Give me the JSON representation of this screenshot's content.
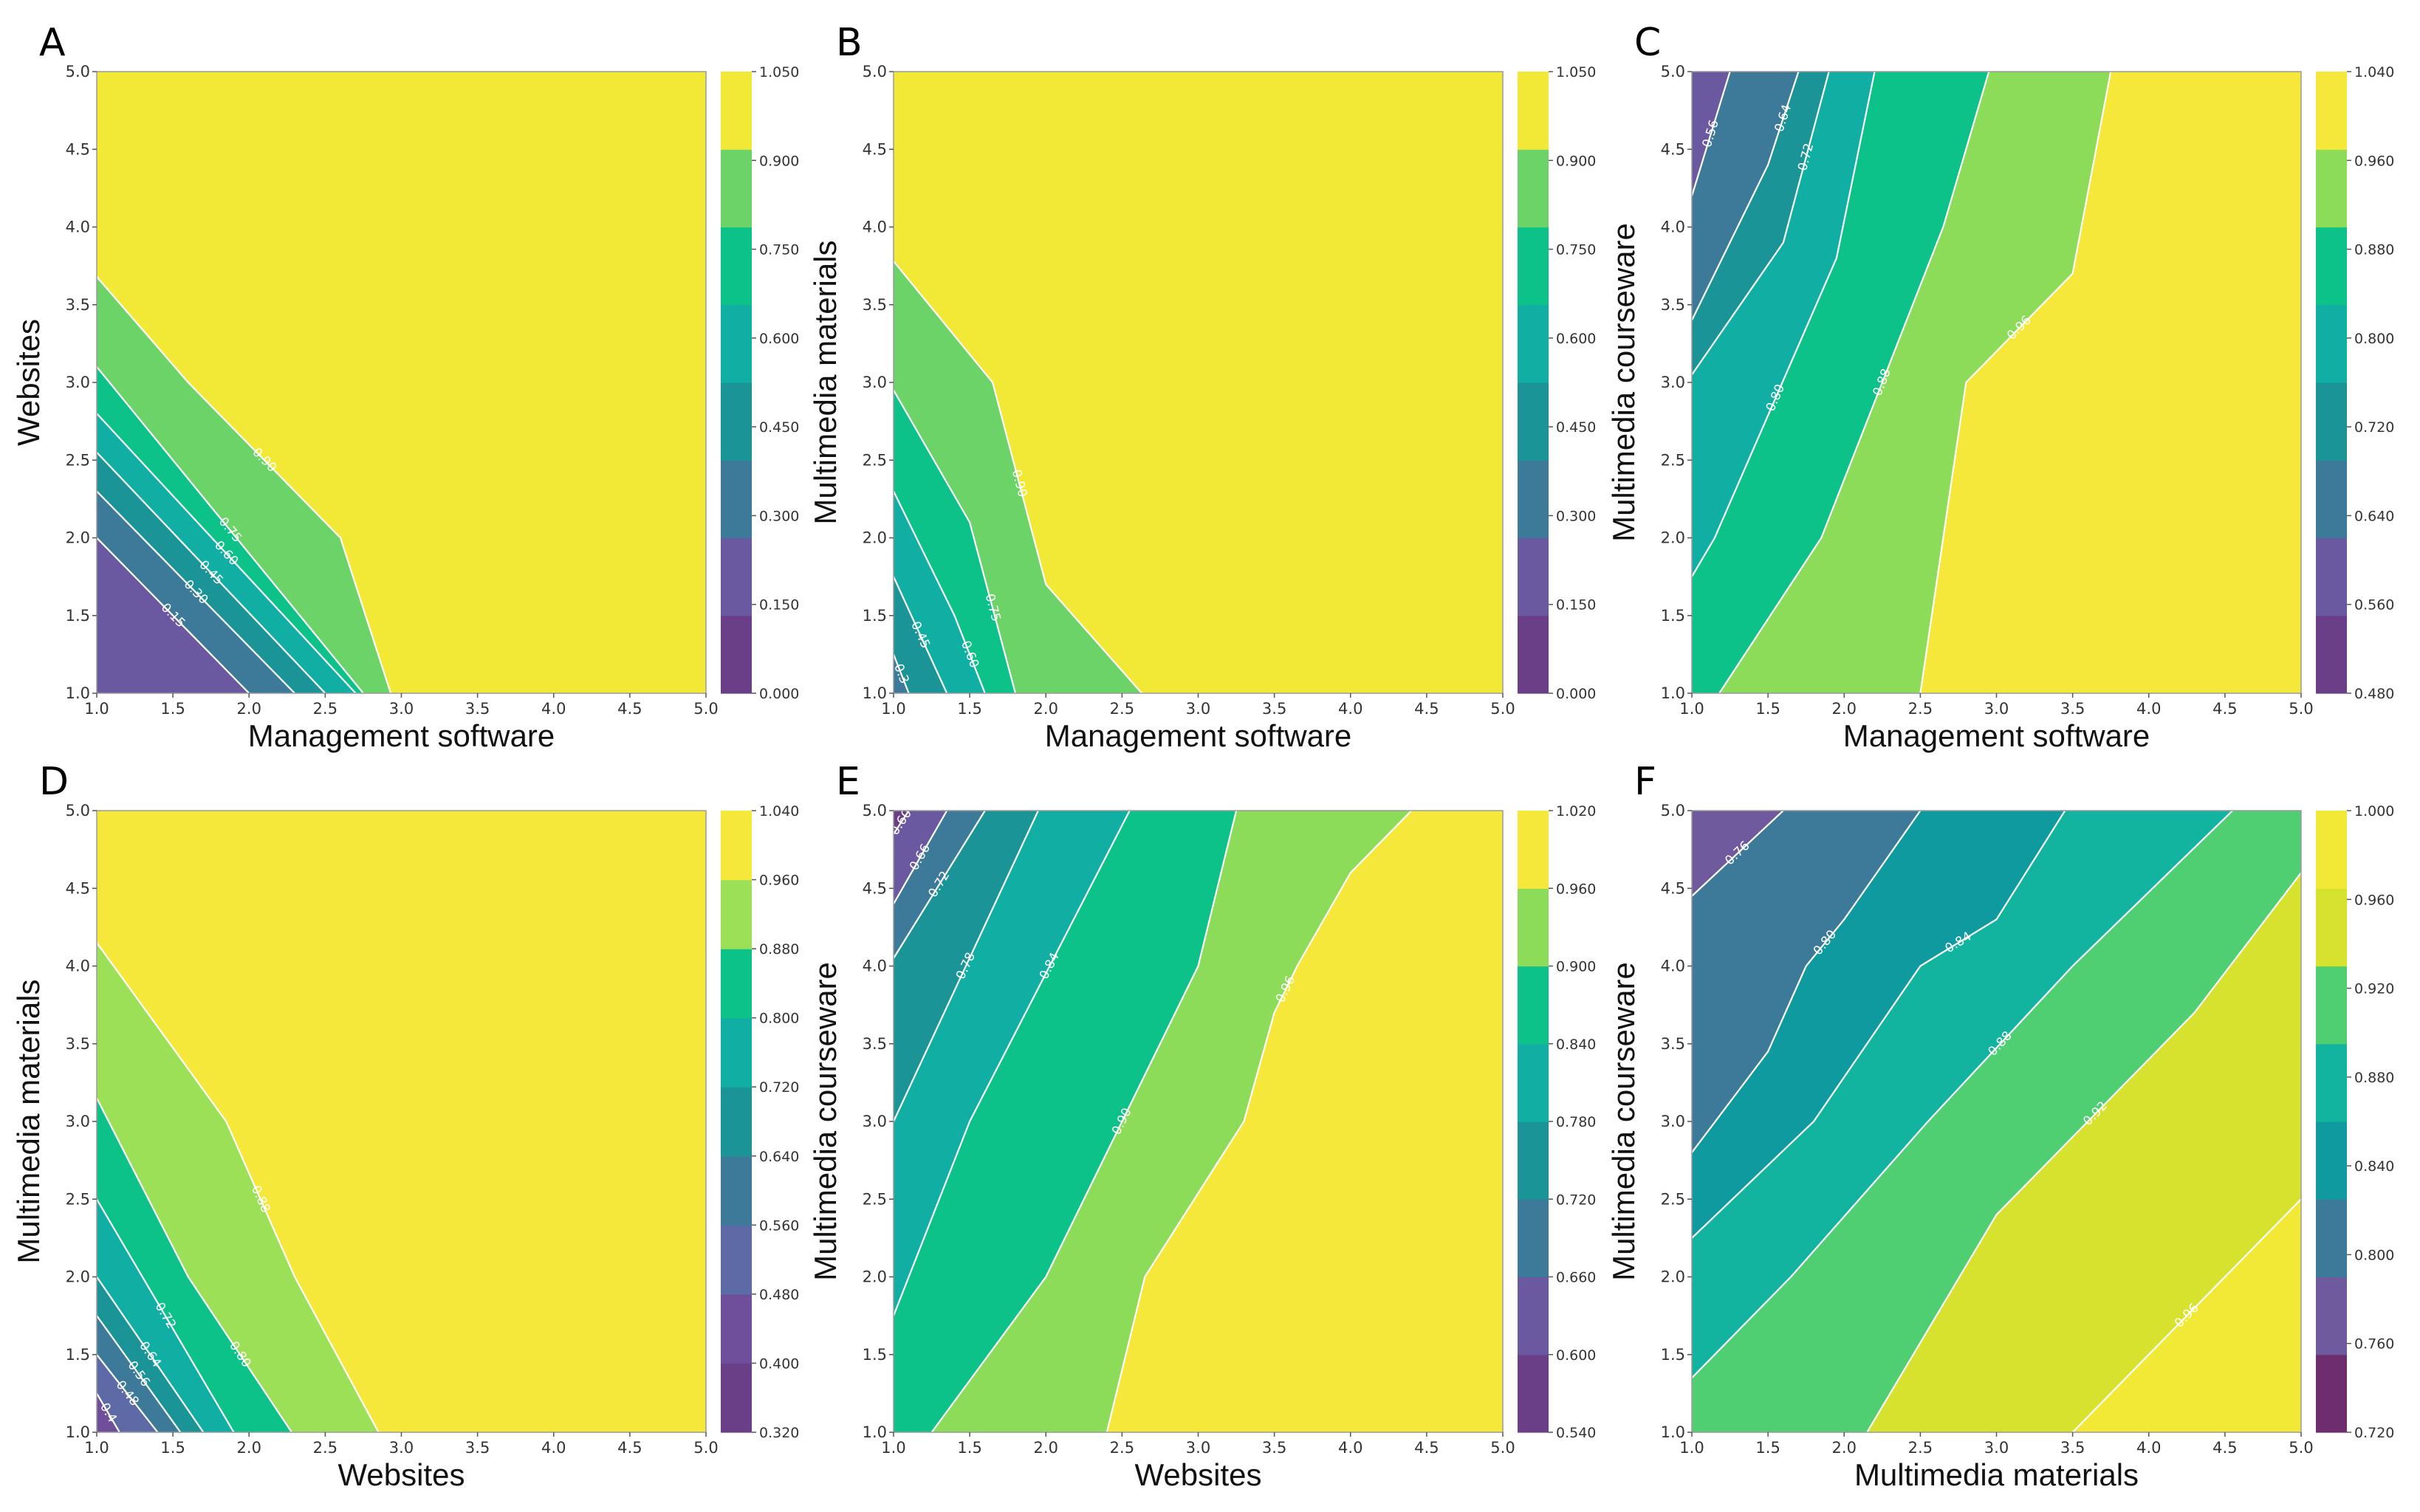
{
  "chart_data": [
    {
      "panel": "A",
      "type": "contourf",
      "xlabel": "Management software",
      "ylabel": "Websites",
      "xlim": [
        1.0,
        5.0
      ],
      "ylim": [
        1.0,
        5.0
      ],
      "xticks": [
        "1.0",
        "1.5",
        "2.0",
        "2.5",
        "3.0",
        "3.5",
        "4.0",
        "4.5",
        "5.0"
      ],
      "yticks": [
        "1.0",
        "1.5",
        "2.0",
        "2.5",
        "3.0",
        "3.5",
        "4.0",
        "4.5",
        "5.0"
      ],
      "levels": [
        0.0,
        0.15,
        0.3,
        0.45,
        0.6,
        0.75,
        0.9,
        1.05
      ],
      "colorbar_ticks": [
        "0.000",
        "0.150",
        "0.300",
        "0.450",
        "0.600",
        "0.750",
        "0.900",
        "1.050"
      ],
      "colors": [
        "#6b3e88",
        "#6a58a0",
        "#3d7a9a",
        "#1a9497",
        "#11aea3",
        "#0cc288",
        "#6bd367",
        "#f2e937"
      ],
      "contours": [
        {
          "level": 0.15,
          "label": "0.15",
          "points": [
            [
              1.0,
              2.0
            ],
            [
              2.0,
              1.0
            ]
          ]
        },
        {
          "level": 0.3,
          "label": "0.30",
          "points": [
            [
              1.0,
              2.3
            ],
            [
              2.3,
              1.0
            ]
          ]
        },
        {
          "level": 0.45,
          "label": "0.45",
          "points": [
            [
              1.0,
              2.55
            ],
            [
              2.5,
              1.0
            ]
          ]
        },
        {
          "level": 0.6,
          "label": "0.60",
          "points": [
            [
              1.0,
              2.8
            ],
            [
              2.7,
              1.0
            ]
          ]
        },
        {
          "level": 0.75,
          "label": "0.75",
          "points": [
            [
              1.0,
              3.1
            ],
            [
              2.75,
              1.0
            ]
          ]
        },
        {
          "level": 0.9,
          "label": "0.90",
          "points": [
            [
              1.0,
              3.68
            ],
            [
              1.6,
              3.0
            ],
            [
              2.6,
              2.0
            ],
            [
              2.93,
              1.0
            ]
          ]
        }
      ]
    },
    {
      "panel": "B",
      "type": "contourf",
      "xlabel": "Management software",
      "ylabel": "Multimedia materials",
      "xlim": [
        1.0,
        5.0
      ],
      "ylim": [
        1.0,
        5.0
      ],
      "xticks": [
        "1.0",
        "1.5",
        "2.0",
        "2.5",
        "3.0",
        "3.5",
        "4.0",
        "4.5",
        "5.0"
      ],
      "yticks": [
        "1.0",
        "1.5",
        "2.0",
        "2.5",
        "3.0",
        "3.5",
        "4.0",
        "4.5",
        "5.0"
      ],
      "levels": [
        0.0,
        0.15,
        0.3,
        0.45,
        0.6,
        0.75,
        0.9,
        1.05
      ],
      "colorbar_ticks": [
        "0.000",
        "0.150",
        "0.300",
        "0.450",
        "0.600",
        "0.750",
        "0.900",
        "1.050"
      ],
      "colors": [
        "#6b3e88",
        "#6a58a0",
        "#3d7a9a",
        "#1a9497",
        "#11aea3",
        "#0cc288",
        "#6bd367",
        "#f2e937"
      ],
      "contours": [
        {
          "level": 0.3,
          "label": "0.3",
          "points": [
            [
              1.0,
              1.25
            ],
            [
              1.1,
              1.0
            ]
          ]
        },
        {
          "level": 0.45,
          "label": "0.45",
          "points": [
            [
              1.0,
              1.75
            ],
            [
              1.35,
              1.0
            ]
          ]
        },
        {
          "level": 0.6,
          "label": "0.60",
          "points": [
            [
              1.0,
              2.3
            ],
            [
              1.4,
              1.5
            ],
            [
              1.6,
              1.0
            ]
          ]
        },
        {
          "level": 0.75,
          "label": "0.75",
          "points": [
            [
              1.0,
              2.95
            ],
            [
              1.5,
              2.1
            ],
            [
              1.8,
              1.0
            ]
          ]
        },
        {
          "level": 0.9,
          "label": "0.90",
          "points": [
            [
              1.0,
              3.78
            ],
            [
              1.65,
              3.0
            ],
            [
              2.0,
              1.7
            ],
            [
              2.63,
              1.0
            ]
          ]
        }
      ]
    },
    {
      "panel": "C",
      "type": "contourf",
      "xlabel": "Management software",
      "ylabel": "Multimedia courseware",
      "xlim": [
        1.0,
        5.0
      ],
      "ylim": [
        1.0,
        5.0
      ],
      "xticks": [
        "1.0",
        "1.5",
        "2.0",
        "2.5",
        "3.0",
        "3.5",
        "4.0",
        "4.5",
        "5.0"
      ],
      "yticks": [
        "1.0",
        "1.5",
        "2.0",
        "2.5",
        "3.0",
        "3.5",
        "4.0",
        "4.5",
        "5.0"
      ],
      "levels": [
        0.48,
        0.56,
        0.64,
        0.72,
        0.8,
        0.88,
        0.96,
        1.04
      ],
      "colorbar_ticks": [
        "0.480",
        "0.560",
        "0.640",
        "0.720",
        "0.800",
        "0.880",
        "0.960",
        "1.040"
      ],
      "colors": [
        "#6b3e88",
        "#6a58a0",
        "#3d7a9a",
        "#1a9497",
        "#11aea3",
        "#0cc288",
        "#8cdc5a",
        "#f5e83a"
      ],
      "contours": [
        {
          "level": 0.56,
          "label": "0.56",
          "points": [
            [
              1.0,
              4.2
            ],
            [
              1.25,
              5.0
            ]
          ]
        },
        {
          "level": 0.64,
          "label": "0.64",
          "points": [
            [
              1.0,
              3.4
            ],
            [
              1.5,
              4.4
            ],
            [
              1.7,
              5.0
            ]
          ]
        },
        {
          "level": 0.72,
          "label": "0.72",
          "points": [
            [
              1.0,
              3.05
            ],
            [
              1.6,
              3.9
            ],
            [
              1.9,
              5.0
            ]
          ]
        },
        {
          "level": 0.8,
          "label": "0.80",
          "points": [
            [
              1.0,
              1.75
            ],
            [
              1.15,
              2.0
            ],
            [
              1.95,
              3.8
            ],
            [
              2.2,
              5.0
            ]
          ]
        },
        {
          "level": 0.88,
          "label": "0.88",
          "points": [
            [
              1.18,
              1.0
            ],
            [
              1.85,
              2.0
            ],
            [
              2.65,
              4.0
            ],
            [
              2.95,
              5.0
            ]
          ]
        },
        {
          "level": 0.96,
          "label": "0.96",
          "points": [
            [
              2.5,
              1.0
            ],
            [
              2.8,
              3.0
            ],
            [
              3.5,
              3.7
            ],
            [
              3.75,
              5.0
            ]
          ]
        }
      ]
    },
    {
      "panel": "D",
      "type": "contourf",
      "xlabel": "Websites",
      "ylabel": "Multimedia materials",
      "xlim": [
        1.0,
        5.0
      ],
      "ylim": [
        1.0,
        5.0
      ],
      "xticks": [
        "1.0",
        "1.5",
        "2.0",
        "2.5",
        "3.0",
        "3.5",
        "4.0",
        "4.5",
        "5.0"
      ],
      "yticks": [
        "1.0",
        "1.5",
        "2.0",
        "2.5",
        "3.0",
        "3.5",
        "4.0",
        "4.5",
        "5.0"
      ],
      "levels": [
        0.32,
        0.4,
        0.48,
        0.56,
        0.64,
        0.72,
        0.8,
        0.88,
        0.96,
        1.04
      ],
      "colorbar_ticks": [
        "0.320",
        "0.400",
        "0.480",
        "0.560",
        "0.640",
        "0.720",
        "0.800",
        "0.880",
        "0.960",
        "1.040"
      ],
      "colors": [
        "#6b3e88",
        "#6f4f9c",
        "#5d6aa5",
        "#3d7a9a",
        "#1a9497",
        "#11aea3",
        "#0cc288",
        "#9ce058",
        "#f5e83a"
      ],
      "contours": [
        {
          "level": 0.4,
          "label": "0.4",
          "points": [
            [
              1.0,
              1.25
            ],
            [
              1.15,
              1.0
            ]
          ]
        },
        {
          "level": 0.48,
          "label": "0.48",
          "points": [
            [
              1.0,
              1.5
            ],
            [
              1.4,
              1.0
            ]
          ]
        },
        {
          "level": 0.56,
          "label": "0.56",
          "points": [
            [
              1.0,
              1.75
            ],
            [
              1.55,
              1.0
            ]
          ]
        },
        {
          "level": 0.64,
          "label": "0.64",
          "points": [
            [
              1.0,
              2.0
            ],
            [
              1.7,
              1.0
            ]
          ]
        },
        {
          "level": 0.72,
          "label": "0.72",
          "points": [
            [
              1.0,
              2.5
            ],
            [
              1.9,
              1.0
            ]
          ]
        },
        {
          "level": 0.8,
          "label": "0.80",
          "points": [
            [
              1.0,
              3.15
            ],
            [
              1.6,
              2.0
            ],
            [
              2.28,
              1.0
            ]
          ]
        },
        {
          "level": 0.88,
          "label": "0.88",
          "points": [
            [
              1.0,
              4.15
            ],
            [
              1.85,
              3.0
            ],
            [
              2.3,
              2.0
            ],
            [
              2.85,
              1.0
            ]
          ]
        }
      ]
    },
    {
      "panel": "E",
      "type": "contourf",
      "xlabel": "Websites",
      "ylabel": "Multimedia courseware",
      "xlim": [
        1.0,
        5.0
      ],
      "ylim": [
        1.0,
        5.0
      ],
      "xticks": [
        "1.0",
        "1.5",
        "2.0",
        "2.5",
        "3.0",
        "3.5",
        "4.0",
        "4.5",
        "5.0"
      ],
      "yticks": [
        "1.0",
        "1.5",
        "2.0",
        "2.5",
        "3.0",
        "3.5",
        "4.0",
        "4.5",
        "5.0"
      ],
      "levels": [
        0.54,
        0.6,
        0.66,
        0.72,
        0.78,
        0.84,
        0.9,
        0.96,
        1.02
      ],
      "colorbar_ticks": [
        "0.540",
        "0.600",
        "0.660",
        "0.720",
        "0.780",
        "0.840",
        "0.900",
        "0.960",
        "1.020"
      ],
      "colors": [
        "#6b3e88",
        "#6a58a0",
        "#3d7a9a",
        "#1a9497",
        "#11aea3",
        "#0cc288",
        "#8cdc5a",
        "#f5e83a"
      ],
      "contours": [
        {
          "level": 0.6,
          "label": "0.60",
          "points": [
            [
              1.0,
              4.85
            ],
            [
              1.1,
              5.0
            ]
          ]
        },
        {
          "level": 0.66,
          "label": "0.66",
          "points": [
            [
              1.0,
              4.4
            ],
            [
              1.35,
              5.0
            ]
          ]
        },
        {
          "level": 0.72,
          "label": "0.72",
          "points": [
            [
              1.0,
              4.05
            ],
            [
              1.6,
              5.0
            ]
          ]
        },
        {
          "level": 0.78,
          "label": "0.78",
          "points": [
            [
              1.0,
              3.0
            ],
            [
              1.95,
              5.0
            ]
          ]
        },
        {
          "level": 0.84,
          "label": "0.84",
          "points": [
            [
              1.0,
              1.75
            ],
            [
              1.5,
              3.0
            ],
            [
              2.55,
              5.0
            ]
          ]
        },
        {
          "level": 0.9,
          "label": "0.90",
          "points": [
            [
              1.25,
              1.0
            ],
            [
              2.0,
              2.0
            ],
            [
              3.0,
              4.0
            ],
            [
              3.25,
              5.0
            ]
          ]
        },
        {
          "level": 0.96,
          "label": "0.96",
          "points": [
            [
              2.4,
              1.0
            ],
            [
              2.65,
              2.0
            ],
            [
              3.3,
              3.0
            ],
            [
              3.5,
              3.7
            ],
            [
              3.65,
              4.0
            ],
            [
              4.0,
              4.6
            ],
            [
              4.4,
              5.0
            ]
          ]
        }
      ]
    },
    {
      "panel": "F",
      "type": "contourf",
      "xlabel": "Multimedia materials",
      "ylabel": "Multimedia courseware",
      "xlim": [
        1.0,
        5.0
      ],
      "ylim": [
        1.0,
        5.0
      ],
      "xticks": [
        "1.0",
        "1.5",
        "2.0",
        "2.5",
        "3.0",
        "3.5",
        "4.0",
        "4.5",
        "5.0"
      ],
      "yticks": [
        "1.0",
        "1.5",
        "2.0",
        "2.5",
        "3.0",
        "3.5",
        "4.0",
        "4.5",
        "5.0"
      ],
      "levels": [
        0.72,
        0.76,
        0.8,
        0.84,
        0.88,
        0.92,
        0.96,
        1.0
      ],
      "colorbar_ticks": [
        "0.720",
        "0.760",
        "0.800",
        "0.840",
        "0.880",
        "0.920",
        "0.960",
        "1.000"
      ],
      "colors": [
        "#6e2d6e",
        "#6f5a9e",
        "#3d7a9a",
        "#0f9aa0",
        "#12b39f",
        "#4fcf72",
        "#d6e22d",
        "#f2e937"
      ],
      "contours": [
        {
          "level": 0.76,
          "label": "0.76",
          "points": [
            [
              1.0,
              4.45
            ],
            [
              1.6,
              5.0
            ]
          ]
        },
        {
          "level": 0.8,
          "label": "0.80",
          "points": [
            [
              1.0,
              2.8
            ],
            [
              1.5,
              3.45
            ],
            [
              1.75,
              4.0
            ],
            [
              2.0,
              4.3
            ],
            [
              2.5,
              5.0
            ]
          ]
        },
        {
          "level": 0.84,
          "label": "0.84",
          "points": [
            [
              1.0,
              2.25
            ],
            [
              1.8,
              3.0
            ],
            [
              2.5,
              4.0
            ],
            [
              3.0,
              4.3
            ],
            [
              3.45,
              5.0
            ]
          ]
        },
        {
          "level": 0.88,
          "label": "0.88",
          "points": [
            [
              1.0,
              1.35
            ],
            [
              1.65,
              2.0
            ],
            [
              2.55,
              3.0
            ],
            [
              3.5,
              4.0
            ],
            [
              4.55,
              5.0
            ]
          ]
        },
        {
          "level": 0.92,
          "label": "0.92",
          "points": [
            [
              2.15,
              1.0
            ],
            [
              3.0,
              2.4
            ],
            [
              4.3,
              3.7
            ],
            [
              5.0,
              4.6
            ]
          ]
        },
        {
          "level": 0.96,
          "label": "0.96",
          "points": [
            [
              3.5,
              1.0
            ],
            [
              5.0,
              2.5
            ]
          ]
        }
      ]
    }
  ]
}
